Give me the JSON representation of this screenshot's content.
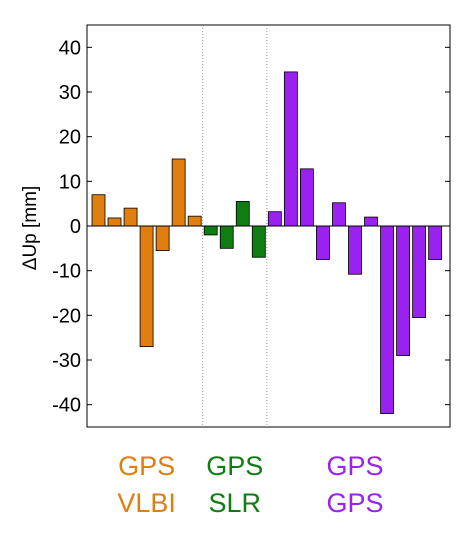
{
  "chart_data": {
    "type": "bar",
    "title": "",
    "xlabel": "",
    "ylabel": "ΔUp [mm]",
    "ylim": [
      -45,
      45
    ],
    "yticks": [
      40,
      30,
      20,
      10,
      0,
      -10,
      -20,
      -30,
      -40
    ],
    "ytick_labels": [
      "40",
      "30",
      "20",
      "10",
      "0",
      "-10",
      "-20",
      "-30",
      "-40"
    ],
    "grid": false,
    "groups": [
      {
        "top_label": "GPS",
        "bottom_label": "VLBI",
        "color": "#e07e10",
        "values": [
          7.0,
          1.8,
          4.0,
          -27.0,
          -5.5,
          15.0,
          2.2
        ]
      },
      {
        "top_label": "GPS",
        "bottom_label": "SLR",
        "color": "#0f7d12",
        "values": [
          -2.0,
          -5.0,
          5.5,
          -7.0
        ]
      },
      {
        "top_label": "GPS",
        "bottom_label": "GPS",
        "color": "#9a22ee",
        "values": [
          3.2,
          34.5,
          12.8,
          -7.5,
          5.2,
          -10.8,
          2.0,
          -42.0,
          -29.0,
          -20.5,
          -7.5
        ]
      }
    ]
  }
}
